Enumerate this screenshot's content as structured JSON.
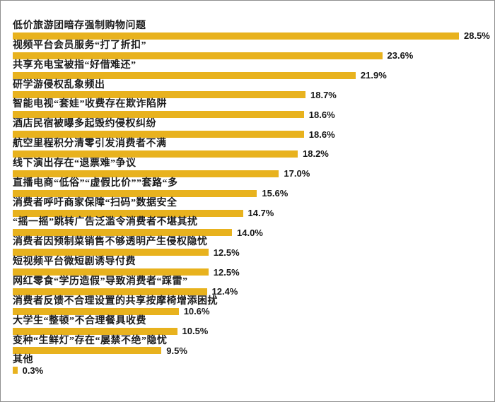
{
  "page": {
    "background_color": "#ffffff",
    "border_color": "#8f8f8f"
  },
  "chart_data": {
    "type": "bar",
    "orientation": "horizontal",
    "title": "",
    "xlabel": "",
    "ylabel": "",
    "grid": false,
    "axes_visible": false,
    "legend": false,
    "value_format": "percent",
    "xlim": [
      0,
      30
    ],
    "bar_color": "#e8b21e",
    "label_color": "#1c1c1c",
    "items": [
      {
        "label": "低价旅游团暗存强制购物问题",
        "value": 28.5,
        "display": "28.5%"
      },
      {
        "label": "视频平台会员服务“打了折扣”",
        "value": 23.6,
        "display": "23.6%"
      },
      {
        "label": "共享充电宝被指“好借难还”",
        "value": 21.9,
        "display": "21.9%"
      },
      {
        "label": "研学游侵权乱象频出",
        "value": 18.7,
        "display": "18.7%"
      },
      {
        "label": "智能电视“套娃”收费存在欺诈陷阱",
        "value": 18.6,
        "display": "18.6%"
      },
      {
        "label": "酒店民宿被曝多起毁约侵权纠纷",
        "value": 18.6,
        "display": "18.6%"
      },
      {
        "label": "航空里程积分清零引发消费者不满",
        "value": 18.2,
        "display": "18.2%"
      },
      {
        "label": "线下演出存在“退票难”争议",
        "value": 17.0,
        "display": "17.0%"
      },
      {
        "label": "直播电商“低俗”“虚假比价””套路“多",
        "value": 15.6,
        "display": "15.6%"
      },
      {
        "label": "消费者呼吁商家保障“扫码”数据安全",
        "value": 14.7,
        "display": "14.7%"
      },
      {
        "label": "“摇一摇”跳转广告泛滥令消费者不堪其扰",
        "value": 14.0,
        "display": "14.0%"
      },
      {
        "label": "消费者因预制菜销售不够透明产生侵权隐忧",
        "value": 12.5,
        "display": "12.5%"
      },
      {
        "label": "短视频平台微短剧诱导付费",
        "value": 12.5,
        "display": "12.5%"
      },
      {
        "label": "网红零食“学历造假”导致消费者“踩雷”",
        "value": 12.4,
        "display": "12.4%"
      },
      {
        "label": "消费者反馈不合理设置的共享按摩椅增添困扰",
        "value": 10.6,
        "display": "10.6%"
      },
      {
        "label": "大学生“整顿”不合理餐具收费",
        "value": 10.5,
        "display": "10.5%"
      },
      {
        "label": "变种“生鲜灯”存在“屡禁不绝”隐忧",
        "value": 9.5,
        "display": "9.5%"
      },
      {
        "label": "其他",
        "value": 0.3,
        "display": "0.3%"
      }
    ]
  }
}
